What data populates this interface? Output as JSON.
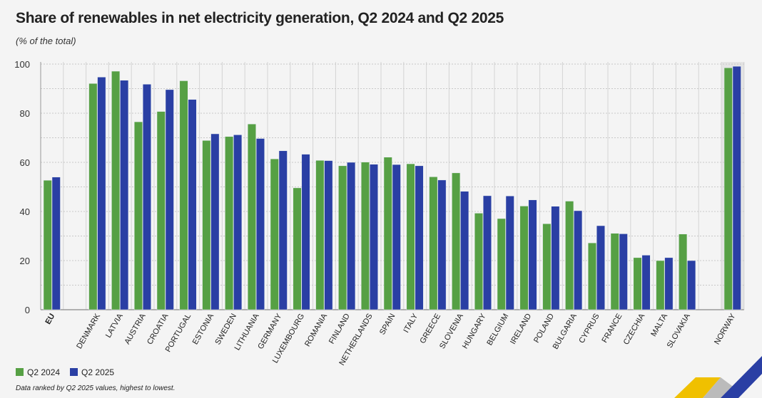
{
  "chart_data": {
    "type": "bar",
    "title": "Share of renewables in net electricity generation, Q2 2024 and Q2 2025",
    "subtitle": "(% of the total)",
    "note": "Data ranked by Q2 2025 values, highest to lowest.",
    "ylim": [
      0,
      100
    ],
    "yticks": [
      0,
      20,
      40,
      60,
      80,
      100
    ],
    "grid": true,
    "legend_position": "bottom-left",
    "categories": [
      "EU",
      "DENMARK",
      "LATVIA",
      "AUSTRIA",
      "CROATIA",
      "PORTUGAL",
      "ESTONIA",
      "SWEDEN",
      "LITHUANIA",
      "GERMANY",
      "LUXEMBOURG",
      "ROMANIA",
      "FINLAND",
      "NETHERLANDS",
      "SPAIN",
      "ITALY",
      "GREECE",
      "SLOVENIA",
      "HUNGARY",
      "BELGIUM",
      "IRELAND",
      "POLAND",
      "BULGARIA",
      "CYPRUS",
      "FRANCE",
      "CZECHIA",
      "MALTA",
      "SLOVAKIA",
      "NORWAY"
    ],
    "series": [
      {
        "name": "Q2 2024",
        "color": "#56a044",
        "values": [
          52.7,
          92.1,
          97.1,
          76.5,
          80.7,
          93.2,
          68.9,
          70.5,
          75.6,
          61.4,
          49.6,
          60.8,
          58.6,
          60.1,
          62.1,
          59.4,
          54.1,
          55.7,
          39.3,
          37.1,
          42.2,
          35.0,
          44.2,
          27.2,
          31.1,
          21.2,
          20.0,
          30.8,
          98.5
        ]
      },
      {
        "name": "Q2 2025",
        "color": "#2a3fa4",
        "values": [
          54.0,
          94.7,
          93.4,
          91.8,
          89.6,
          85.6,
          71.6,
          71.2,
          69.7,
          64.7,
          63.3,
          60.7,
          60.0,
          59.2,
          59.1,
          58.6,
          52.8,
          48.2,
          46.4,
          46.3,
          44.7,
          42.1,
          40.3,
          34.2,
          30.9,
          22.2,
          21.2,
          20.0,
          99.1
        ]
      }
    ]
  }
}
